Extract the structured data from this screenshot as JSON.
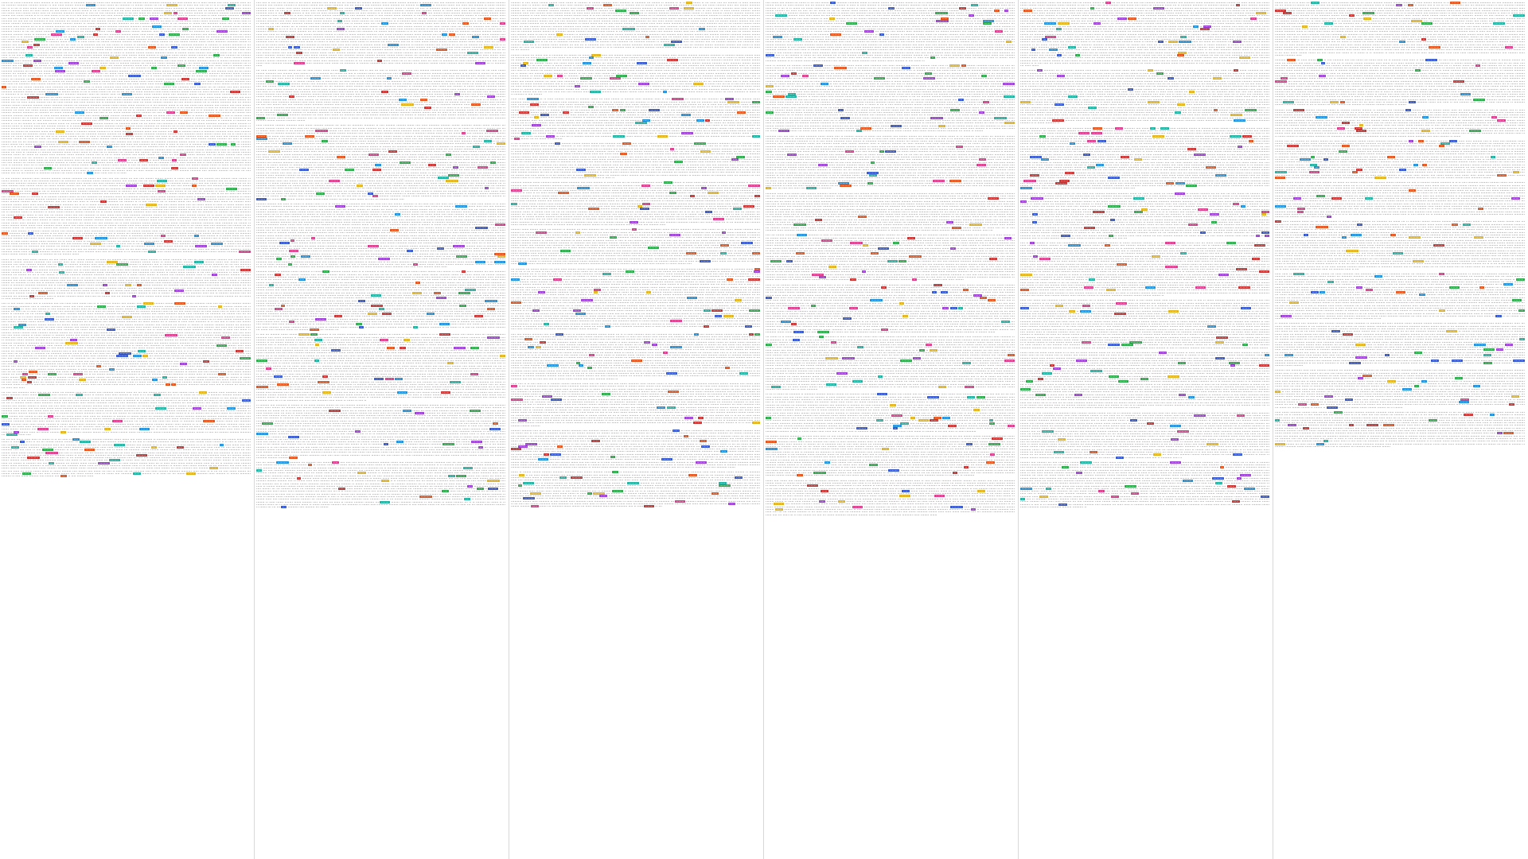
{
  "document": {
    "columns": [
      {
        "entries": [
          {
            "id": "",
            "lines": 98,
            "tags": ""
          },
          {
            "id": "",
            "lines": 44,
            "tags": ""
          },
          {
            "id": "",
            "lines": 22,
            "tags": ""
          },
          {
            "id": "",
            "lines": 48,
            "tags": ""
          },
          {
            "id": "",
            "lines": 24,
            "tags": ""
          },
          {
            "id": "",
            "lines": 22,
            "tags": ""
          }
        ]
      },
      {
        "entries": [
          {
            "id": "",
            "lines": 36,
            "tags": ""
          },
          {
            "id": "",
            "lines": 28,
            "tags": ""
          },
          {
            "id": "",
            "lines": 42,
            "tags": ""
          },
          {
            "id": "",
            "lines": 36,
            "tags": ""
          },
          {
            "id": "",
            "lines": 34,
            "tags": ""
          },
          {
            "id": "",
            "lines": 38,
            "tags": ""
          },
          {
            "id": "",
            "lines": 30,
            "tags": ""
          },
          {
            "id": "",
            "lines": 26,
            "tags": ""
          }
        ]
      },
      {
        "entries": [
          {
            "id": "",
            "lines": 26,
            "tags": ""
          },
          {
            "id": "",
            "lines": 22,
            "tags": ""
          },
          {
            "id": "",
            "lines": 22,
            "tags": ""
          },
          {
            "id": "",
            "lines": 20,
            "tags": ""
          },
          {
            "id": "",
            "lines": 24,
            "tags": ""
          },
          {
            "id": "",
            "lines": 20,
            "tags": ""
          },
          {
            "id": "",
            "lines": 34,
            "tags": ""
          },
          {
            "id": "",
            "lines": 26,
            "tags": ""
          },
          {
            "id": "",
            "lines": 24,
            "tags": ""
          },
          {
            "id": "",
            "lines": 22,
            "tags": ""
          },
          {
            "id": "",
            "lines": 20,
            "tags": ""
          }
        ]
      },
      {
        "entries": [
          {
            "id": "",
            "lines": 34,
            "tags": ""
          },
          {
            "id": "",
            "lines": 38,
            "tags": ""
          },
          {
            "id": "",
            "lines": 30,
            "tags": ""
          },
          {
            "id": "",
            "lines": 22,
            "tags": ""
          },
          {
            "id": "",
            "lines": 26,
            "tags": ""
          },
          {
            "id": "",
            "lines": 28,
            "tags": ""
          },
          {
            "id": "",
            "lines": 30,
            "tags": ""
          },
          {
            "id": "",
            "lines": 22,
            "tags": ""
          },
          {
            "id": "",
            "lines": 24,
            "tags": ""
          },
          {
            "id": "",
            "lines": 20,
            "tags": ""
          }
        ]
      },
      {
        "entries": [
          {
            "id": "",
            "lines": 36,
            "tags": ""
          },
          {
            "id": "",
            "lines": 30,
            "tags": ""
          },
          {
            "id": "",
            "lines": 34,
            "tags": ""
          },
          {
            "id": "",
            "lines": 26,
            "tags": ""
          },
          {
            "id": "",
            "lines": 30,
            "tags": ""
          },
          {
            "id": "",
            "lines": 28,
            "tags": ""
          },
          {
            "id": "",
            "lines": 32,
            "tags": ""
          },
          {
            "id": "",
            "lines": 26,
            "tags": ""
          },
          {
            "id": "",
            "lines": 24,
            "tags": ""
          }
        ]
      },
      {
        "entries": [
          {
            "id": "",
            "lines": 30,
            "tags": ""
          },
          {
            "id": "",
            "lines": 26,
            "tags": ""
          },
          {
            "id": "",
            "lines": 16,
            "tags": ""
          },
          {
            "id": "",
            "lines": 22,
            "tags": ""
          },
          {
            "id": "",
            "lines": 20,
            "tags": ""
          },
          {
            "id": "",
            "lines": 28,
            "tags": ""
          },
          {
            "id": "",
            "lines": 26,
            "tags": ""
          },
          {
            "id": "",
            "lines": 24,
            "tags": ""
          },
          {
            "id": "",
            "lines": 22,
            "tags": ""
          },
          {
            "id": "",
            "lines": 20,
            "tags": ""
          }
        ]
      }
    ],
    "highlight_colors": [
      "#e0531c",
      "#2ba84a",
      "#9b3fd0",
      "#1f8fd8",
      "#e0b21c",
      "#d63c8a",
      "#20b0a0",
      "#c43232",
      "#3456c8"
    ],
    "body_text_color": "#555555"
  }
}
